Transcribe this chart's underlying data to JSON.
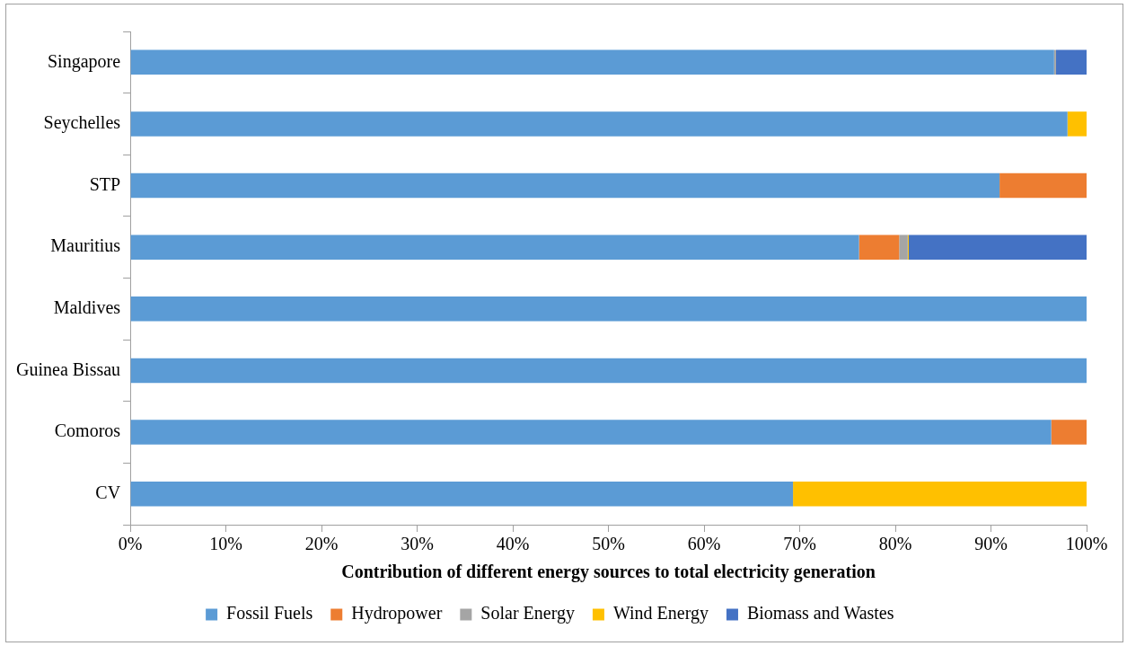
{
  "chart_data": {
    "type": "bar",
    "orientation": "horizontal",
    "stacked": true,
    "xlabel": "Contribution of different energy sources to total electricity generation",
    "categories": [
      "Singapore",
      "Seychelles",
      "STP",
      "Mauritius",
      "Maldives",
      "Guinea Bissau",
      "Comoros",
      "CV"
    ],
    "series": [
      {
        "name": "Fossil Fuels",
        "color": "#5b9bd5",
        "values": [
          96.6,
          98.0,
          90.9,
          76.2,
          100,
          100,
          96.3,
          69.3
        ]
      },
      {
        "name": "Hydropower",
        "color": "#ed7d31",
        "values": [
          0,
          0,
          9.1,
          4.2,
          0,
          0,
          3.7,
          0
        ]
      },
      {
        "name": "Solar Energy",
        "color": "#a5a5a5",
        "values": [
          0.2,
          0,
          0,
          0.9,
          0,
          0,
          0,
          0
        ]
      },
      {
        "name": "Wind Energy",
        "color": "#ffc000",
        "values": [
          0,
          2.0,
          0,
          0.1,
          0,
          0,
          0,
          30.7
        ]
      },
      {
        "name": "Biomass and Wastes",
        "color": "#4472c4",
        "values": [
          3.2,
          0,
          0,
          18.6,
          0,
          0,
          0,
          0
        ]
      }
    ],
    "xlim": [
      0,
      100
    ],
    "xticks": [
      {
        "value": 0,
        "label": "0%"
      },
      {
        "value": 10,
        "label": "10%"
      },
      {
        "value": 20,
        "label": "20%"
      },
      {
        "value": 30,
        "label": "30%"
      },
      {
        "value": 40,
        "label": "40%"
      },
      {
        "value": 50,
        "label": "50%"
      },
      {
        "value": 60,
        "label": "60%"
      },
      {
        "value": 70,
        "label": "70%"
      },
      {
        "value": 80,
        "label": "80%"
      },
      {
        "value": 90,
        "label": "90%"
      },
      {
        "value": 100,
        "label": "100%"
      }
    ],
    "grid": false,
    "legend": "bottom"
  }
}
